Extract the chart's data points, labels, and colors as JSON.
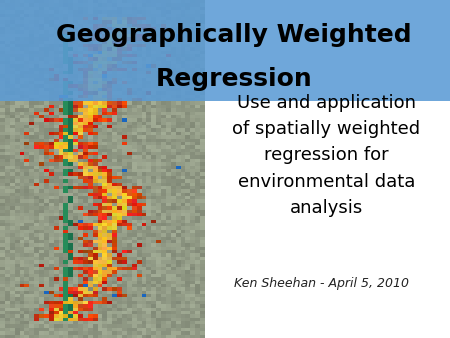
{
  "title_line1": "Geographically Weighted",
  "title_line2": "Regression",
  "title_bg_color": "#5B9BD5",
  "title_text_color": "#000000",
  "body_text": "Use and application\nof spatially weighted\nregression for\nenvironmental data\nanalysis",
  "author_text": "Ken Sheehan - April 5, 2010",
  "background_color": "#FFFFFF",
  "body_fontsize": 13,
  "author_fontsize": 9,
  "title_fontsize": 18
}
